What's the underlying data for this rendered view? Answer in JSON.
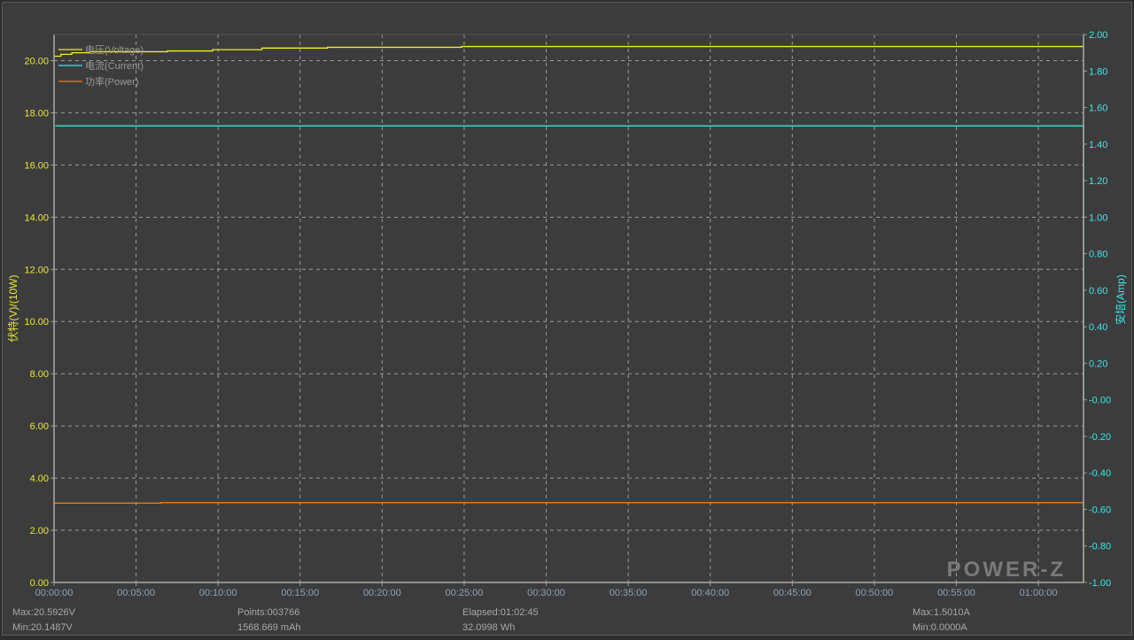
{
  "chart_data": {
    "type": "line",
    "left_axis": {
      "label": "伏特(V)/(10W)",
      "range": [
        0,
        21
      ],
      "ticks": [
        "0.00",
        "2.00",
        "4.00",
        "6.00",
        "8.00",
        "10.00",
        "12.00",
        "14.00",
        "16.00",
        "18.00",
        "20.00"
      ],
      "color": "#e8e832"
    },
    "right_axis": {
      "label": "安培(Amp)",
      "range": [
        -1,
        2
      ],
      "ticks": [
        "-1.00",
        "-0.80",
        "-0.60",
        "-0.40",
        "-0.20",
        "-0.00",
        "0.20",
        "0.40",
        "0.60",
        "0.80",
        "1.00",
        "1.20",
        "1.40",
        "1.60",
        "1.80",
        "2.00"
      ],
      "color": "#3ee6e6"
    },
    "x_axis": {
      "range": [
        "00:00:00",
        "01:02:45"
      ],
      "ticks": [
        "00:00:00",
        "00:05:00",
        "00:10:00",
        "00:15:00",
        "00:20:00",
        "00:25:00",
        "00:30:00",
        "00:35:00",
        "00:40:00",
        "00:45:00",
        "00:50:00",
        "00:55:00",
        "01:00:00"
      ]
    },
    "grid": true,
    "legend_placement": "top-left",
    "series": [
      {
        "name": "电压(Voltage)",
        "axis": "left",
        "color": "#f0f020",
        "points": [
          [
            "00:00:00",
            20.17
          ],
          [
            "00:00:25",
            20.24
          ],
          [
            "00:01:05",
            20.3
          ],
          [
            "00:02:10",
            20.34
          ],
          [
            "00:06:55",
            20.37
          ],
          [
            "00:09:40",
            20.42
          ],
          [
            "00:12:40",
            20.48
          ],
          [
            "00:16:40",
            20.51
          ],
          [
            "00:24:50",
            20.54
          ],
          [
            "01:02:40",
            20.54
          ],
          [
            "01:02:45",
            20.59
          ]
        ]
      },
      {
        "name": "电流(Current)",
        "axis": "right",
        "color": "#30e8e8",
        "points": [
          [
            "00:00:05",
            1.5
          ],
          [
            "01:02:44",
            1.5
          ],
          [
            "01:02:45",
            0.0
          ]
        ]
      },
      {
        "name": "功率(Power)",
        "axis": "left",
        "color": "#f08010",
        "points": [
          [
            "00:00:00",
            3.04
          ],
          [
            "00:06:30",
            3.06
          ],
          [
            "01:02:44",
            3.06
          ],
          [
            "01:02:45",
            0.0
          ]
        ]
      }
    ]
  },
  "stats": {
    "v_max": "Max:20.5926V",
    "v_min": "Min:20.1487V",
    "points": "Points:003766",
    "mah": "1568.669 mAh",
    "elapsed": "Elapsed:01:02:45",
    "wh": "32.0998 Wh",
    "a_max": "Max:1.5010A",
    "a_min": "Min:0.0000A"
  },
  "watermark": "POWER-Z"
}
